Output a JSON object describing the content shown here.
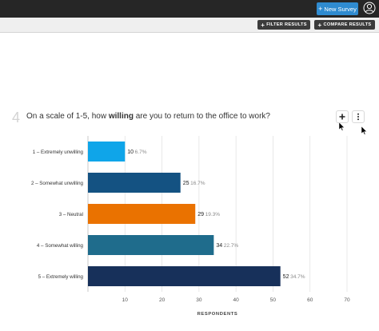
{
  "header": {
    "new_survey_label": "New Survey",
    "plus_glyph": "+",
    "avatar_icon": "user-circle-icon"
  },
  "toolbar": {
    "filter_label": "FILTER RESULTS",
    "compare_label": "COMPARE RESULTS"
  },
  "question": {
    "number": "4",
    "text_before": "On a scale of 1-5, how ",
    "text_bold": "willing",
    "text_after": " are you to return to the office to work?",
    "add_icon": "plus-icon",
    "menu_icon": "vertical-dots-icon"
  },
  "colors": {
    "accent": "#2f8bd0",
    "dark_bar": "#262626"
  },
  "chart_data": {
    "type": "bar",
    "orientation": "horizontal",
    "categories": [
      "1 – Extremely unwilling",
      "2 – Somewhat unwilling",
      "3 – Neutral",
      "4 – Somewhat willing",
      "5 – Extremely willing"
    ],
    "values": [
      10,
      25,
      29,
      34,
      52
    ],
    "percent_labels": [
      "6.7%",
      "16.7%",
      "19.3%",
      "22.7%",
      "34.7%"
    ],
    "bar_colors": [
      "#0fa5e9",
      "#145282",
      "#ea7200",
      "#1f6c8c",
      "#17305a"
    ],
    "xlabel": "RESPONDENTS",
    "xlim": [
      0,
      70
    ],
    "xticks": [
      10,
      20,
      30,
      40,
      50,
      60,
      70
    ],
    "grid": true
  }
}
